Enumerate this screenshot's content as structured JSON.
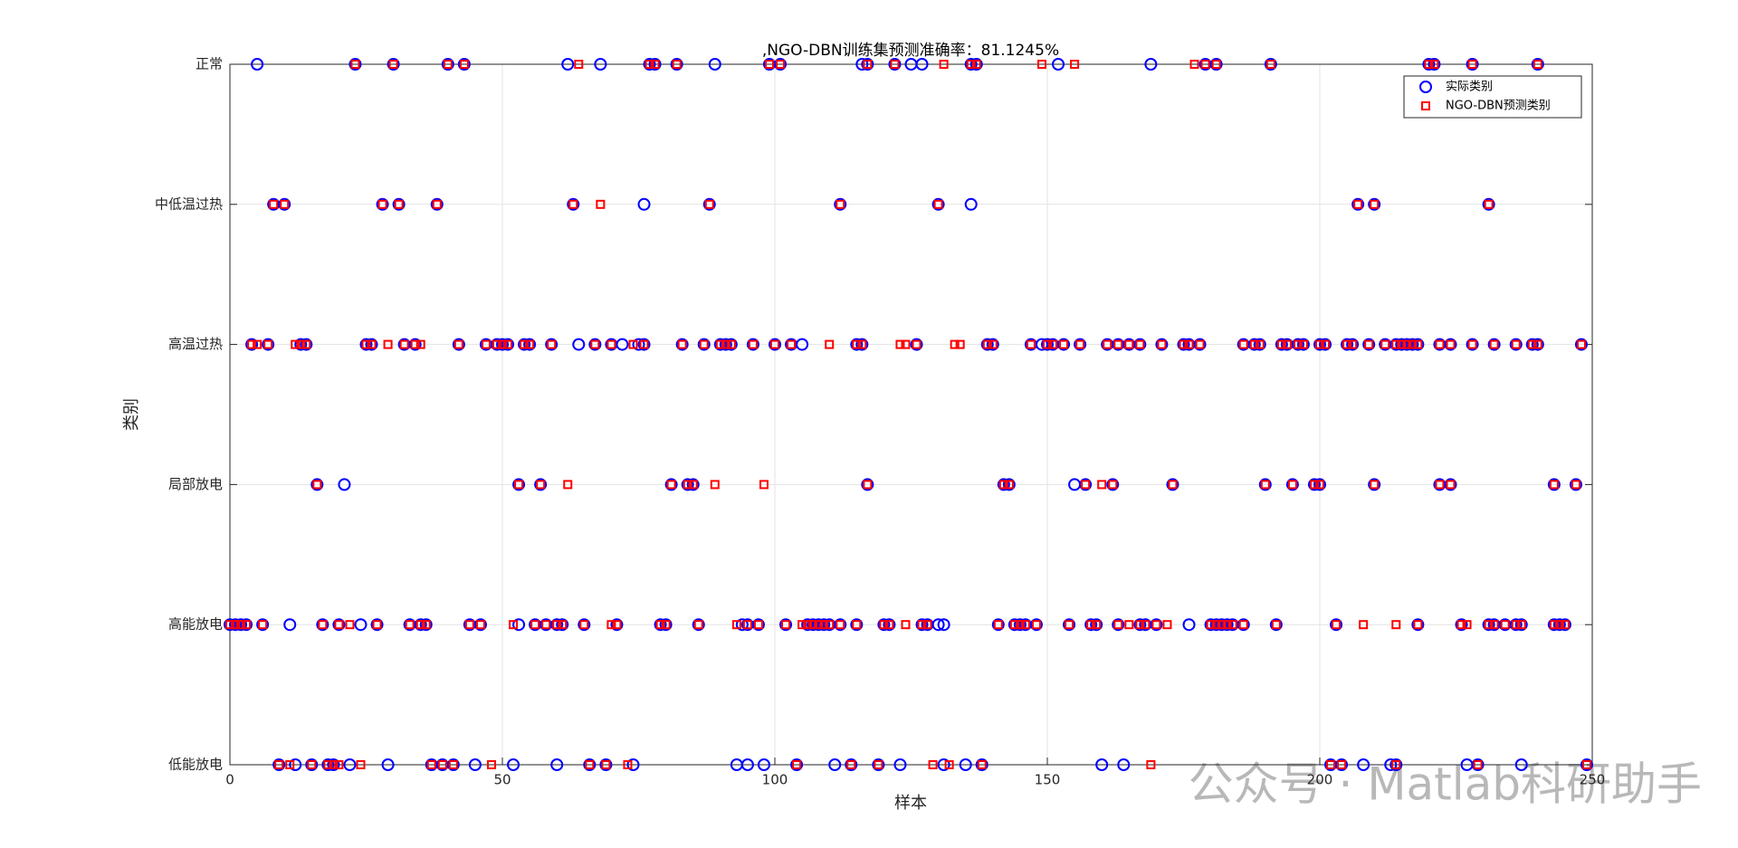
{
  "chart_data": {
    "type": "scatter",
    "title": ",NGO-DBN训练集预测准确率：81.1245%",
    "x_label": "样本",
    "y_label": "类别",
    "watermark": "公众号 · Matlab科研助手",
    "xlim": [
      0,
      250
    ],
    "xticks": [
      0,
      50,
      100,
      150,
      200,
      250
    ],
    "ylim": [
      1,
      6
    ],
    "yticks": [
      {
        "value": 1,
        "label": "低能放电"
      },
      {
        "value": 2,
        "label": "高能放电"
      },
      {
        "value": 3,
        "label": "局部放电"
      },
      {
        "value": 4,
        "label": "高温过热"
      },
      {
        "value": 5,
        "label": "中低温过热"
      },
      {
        "value": 6,
        "label": "正常"
      }
    ],
    "grid": true,
    "legend": "northeast",
    "series": [
      {
        "name": "实际类别",
        "color": "#0000ff",
        "marker": "circle",
        "x": [
          5,
          23,
          30,
          40,
          43,
          62,
          68,
          77,
          78,
          82,
          89,
          99,
          101,
          116,
          117,
          122,
          125,
          127,
          136,
          137,
          152,
          169,
          179,
          181,
          191,
          220,
          221,
          228,
          240,
          8,
          10,
          28,
          31,
          38,
          63,
          76,
          88,
          112,
          130,
          136,
          207,
          210,
          231,
          4,
          7,
          13,
          14,
          25,
          26,
          32,
          34,
          42,
          47,
          49,
          50,
          51,
          54,
          55,
          59,
          64,
          67,
          70,
          72,
          75,
          76,
          83,
          87,
          90,
          91,
          92,
          96,
          100,
          103,
          105,
          115,
          116,
          126,
          139,
          140,
          147,
          149,
          150,
          151,
          153,
          156,
          161,
          163,
          165,
          167,
          171,
          175,
          176,
          178,
          186,
          188,
          189,
          193,
          194,
          196,
          197,
          200,
          201,
          205,
          206,
          209,
          212,
          214,
          215,
          216,
          217,
          218,
          222,
          224,
          228,
          232,
          236,
          239,
          240,
          248,
          16,
          21,
          53,
          57,
          81,
          84,
          85,
          117,
          142,
          143,
          155,
          157,
          162,
          173,
          190,
          195,
          199,
          200,
          210,
          222,
          224,
          243,
          247,
          0,
          1,
          2,
          3,
          6,
          11,
          17,
          20,
          24,
          27,
          33,
          35,
          36,
          44,
          46,
          53,
          56,
          58,
          60,
          61,
          65,
          71,
          79,
          80,
          86,
          94,
          95,
          97,
          102,
          106,
          107,
          108,
          109,
          110,
          112,
          115,
          120,
          121,
          127,
          128,
          130,
          131,
          141,
          144,
          145,
          146,
          148,
          154,
          158,
          159,
          163,
          167,
          168,
          170,
          176,
          180,
          181,
          182,
          183,
          184,
          186,
          192,
          203,
          218,
          226,
          231,
          232,
          234,
          236,
          237,
          243,
          244,
          245,
          9,
          12,
          15,
          18,
          19,
          22,
          29,
          37,
          39,
          41,
          45,
          52,
          60,
          66,
          69,
          74,
          93,
          95,
          98,
          104,
          111,
          114,
          119,
          123,
          131,
          135,
          138,
          160,
          164,
          202,
          204,
          208,
          213,
          214,
          227,
          229,
          237,
          249
        ],
        "values": [
          6,
          6,
          6,
          6,
          6,
          6,
          6,
          6,
          6,
          6,
          6,
          6,
          6,
          6,
          6,
          6,
          6,
          6,
          6,
          6,
          6,
          6,
          6,
          6,
          6,
          6,
          6,
          6,
          6,
          5,
          5,
          5,
          5,
          5,
          5,
          5,
          5,
          5,
          5,
          5,
          5,
          5,
          5,
          4,
          4,
          4,
          4,
          4,
          4,
          4,
          4,
          4,
          4,
          4,
          4,
          4,
          4,
          4,
          4,
          4,
          4,
          4,
          4,
          4,
          4,
          4,
          4,
          4,
          4,
          4,
          4,
          4,
          4,
          4,
          4,
          4,
          4,
          4,
          4,
          4,
          4,
          4,
          4,
          4,
          4,
          4,
          4,
          4,
          4,
          4,
          4,
          4,
          4,
          4,
          4,
          4,
          4,
          4,
          4,
          4,
          4,
          4,
          4,
          4,
          4,
          4,
          4,
          4,
          4,
          4,
          4,
          4,
          4,
          4,
          4,
          4,
          4,
          4,
          4,
          3,
          3,
          3,
          3,
          3,
          3,
          3,
          3,
          3,
          3,
          3,
          3,
          3,
          3,
          3,
          3,
          3,
          3,
          3,
          3,
          3,
          3,
          3,
          2,
          2,
          2,
          2,
          2,
          2,
          2,
          2,
          2,
          2,
          2,
          2,
          2,
          2,
          2,
          2,
          2,
          2,
          2,
          2,
          2,
          2,
          2,
          2,
          2,
          2,
          2,
          2,
          2,
          2,
          2,
          2,
          2,
          2,
          2,
          2,
          2,
          2,
          2,
          2,
          2,
          2,
          2,
          2,
          2,
          2,
          2,
          2,
          2,
          2,
          2,
          2,
          2,
          2,
          2,
          2,
          2,
          2,
          2,
          2,
          2,
          2,
          2,
          2,
          2,
          2,
          2,
          2,
          2,
          2,
          2,
          2,
          2,
          1,
          1,
          1,
          1,
          1,
          1,
          1,
          1,
          1,
          1,
          1,
          1,
          1,
          1,
          1,
          1,
          1,
          1,
          1,
          1,
          1,
          1,
          1,
          1,
          1,
          1,
          1,
          1,
          1,
          1,
          1,
          1,
          1,
          1,
          1,
          1,
          1,
          1
        ]
      },
      {
        "name": "NGO-DBN预测类别",
        "color": "#ff0000",
        "marker": "square",
        "x": [
          23,
          30,
          40,
          43,
          64,
          77,
          78,
          82,
          99,
          101,
          117,
          122,
          131,
          136,
          137,
          149,
          155,
          177,
          179,
          181,
          191,
          220,
          221,
          228,
          240,
          8,
          10,
          28,
          31,
          38,
          63,
          68,
          88,
          112,
          130,
          207,
          210,
          231,
          4,
          5,
          7,
          12,
          13,
          14,
          25,
          26,
          29,
          32,
          34,
          35,
          42,
          47,
          49,
          50,
          51,
          54,
          55,
          59,
          67,
          70,
          74,
          76,
          83,
          87,
          90,
          91,
          92,
          96,
          100,
          103,
          110,
          115,
          116,
          123,
          124,
          126,
          133,
          134,
          139,
          140,
          147,
          150,
          151,
          153,
          156,
          161,
          163,
          165,
          167,
          171,
          175,
          176,
          178,
          186,
          188,
          189,
          193,
          194,
          196,
          197,
          200,
          201,
          205,
          206,
          209,
          212,
          214,
          215,
          216,
          217,
          218,
          222,
          224,
          228,
          232,
          236,
          239,
          240,
          248,
          16,
          53,
          57,
          62,
          81,
          84,
          85,
          89,
          98,
          117,
          142,
          143,
          157,
          160,
          162,
          173,
          190,
          195,
          199,
          200,
          210,
          222,
          224,
          243,
          247,
          0,
          1,
          2,
          3,
          6,
          17,
          20,
          22,
          27,
          33,
          35,
          36,
          44,
          46,
          52,
          56,
          58,
          60,
          61,
          65,
          70,
          71,
          79,
          80,
          86,
          93,
          95,
          97,
          102,
          105,
          106,
          107,
          108,
          109,
          110,
          112,
          115,
          120,
          121,
          124,
          127,
          128,
          141,
          144,
          145,
          146,
          148,
          154,
          158,
          159,
          163,
          165,
          167,
          168,
          170,
          172,
          180,
          181,
          182,
          183,
          184,
          186,
          192,
          203,
          208,
          214,
          218,
          226,
          227,
          231,
          232,
          234,
          236,
          237,
          243,
          244,
          245,
          9,
          11,
          15,
          18,
          19,
          20,
          24,
          37,
          39,
          41,
          48,
          66,
          69,
          73,
          104,
          114,
          119,
          129,
          132,
          138,
          169,
          202,
          204,
          214,
          229,
          249
        ],
        "values": [
          6,
          6,
          6,
          6,
          6,
          6,
          6,
          6,
          6,
          6,
          6,
          6,
          6,
          6,
          6,
          6,
          6,
          6,
          6,
          6,
          6,
          6,
          6,
          6,
          6,
          5,
          5,
          5,
          5,
          5,
          5,
          5,
          5,
          5,
          5,
          5,
          5,
          5,
          4,
          4,
          4,
          4,
          4,
          4,
          4,
          4,
          4,
          4,
          4,
          4,
          4,
          4,
          4,
          4,
          4,
          4,
          4,
          4,
          4,
          4,
          4,
          4,
          4,
          4,
          4,
          4,
          4,
          4,
          4,
          4,
          4,
          4,
          4,
          4,
          4,
          4,
          4,
          4,
          4,
          4,
          4,
          4,
          4,
          4,
          4,
          4,
          4,
          4,
          4,
          4,
          4,
          4,
          4,
          4,
          4,
          4,
          4,
          4,
          4,
          4,
          4,
          4,
          4,
          4,
          4,
          4,
          4,
          4,
          4,
          4,
          4,
          4,
          4,
          4,
          4,
          4,
          4,
          4,
          4,
          3,
          3,
          3,
          3,
          3,
          3,
          3,
          3,
          3,
          3,
          3,
          3,
          3,
          3,
          3,
          3,
          3,
          3,
          3,
          3,
          3,
          3,
          3,
          3,
          3,
          2,
          2,
          2,
          2,
          2,
          2,
          2,
          2,
          2,
          2,
          2,
          2,
          2,
          2,
          2,
          2,
          2,
          2,
          2,
          2,
          2,
          2,
          2,
          2,
          2,
          2,
          2,
          2,
          2,
          2,
          2,
          2,
          2,
          2,
          2,
          2,
          2,
          2,
          2,
          2,
          2,
          2,
          2,
          2,
          2,
          2,
          2,
          2,
          2,
          2,
          2,
          2,
          2,
          2,
          2,
          2,
          2,
          2,
          2,
          2,
          2,
          2,
          2,
          2,
          2,
          2,
          2,
          2,
          2,
          2,
          2,
          2,
          2,
          2,
          2,
          2,
          2,
          1,
          1,
          1,
          1,
          1,
          1,
          1,
          1,
          1,
          1,
          1,
          1,
          1,
          1,
          1,
          1,
          1,
          1,
          1,
          1,
          1,
          1,
          1,
          1,
          1,
          1
        ]
      }
    ]
  }
}
